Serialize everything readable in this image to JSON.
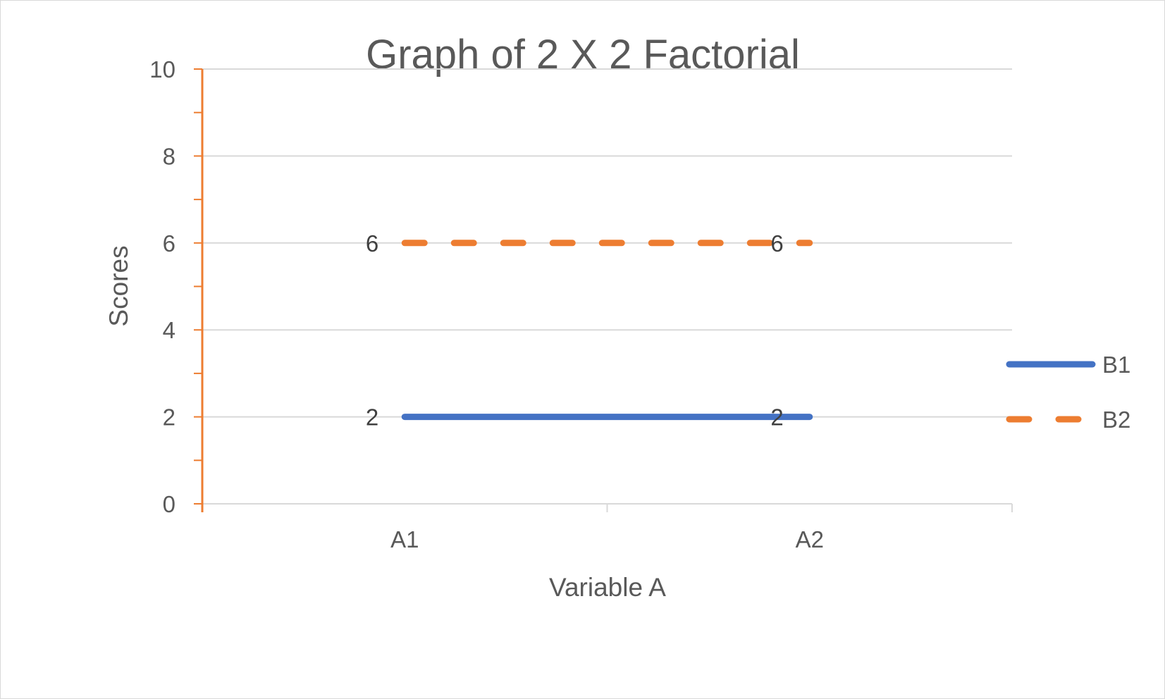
{
  "chart_data": {
    "type": "line",
    "title": "Graph of 2 X 2 Factorial",
    "xlabel": "Variable A",
    "ylabel": "Scores",
    "categories": [
      "A1",
      "A2"
    ],
    "ylim": [
      0,
      10
    ],
    "yticks": [
      0,
      2,
      4,
      6,
      8,
      10
    ],
    "grid": true,
    "legend_position": "right",
    "series": [
      {
        "name": "B1",
        "values": [
          2,
          2
        ],
        "labels": [
          "2",
          "2"
        ],
        "color": "#4472c4",
        "style": "solid"
      },
      {
        "name": "B2",
        "values": [
          6,
          6
        ],
        "labels": [
          "6",
          "6"
        ],
        "color": "#ed7d31",
        "style": "dashed"
      }
    ],
    "colors": {
      "y_axis": "#ed7d31",
      "x_axis": "#d9d9d9",
      "gridline": "#d9d9d9",
      "text": "#595959"
    }
  }
}
